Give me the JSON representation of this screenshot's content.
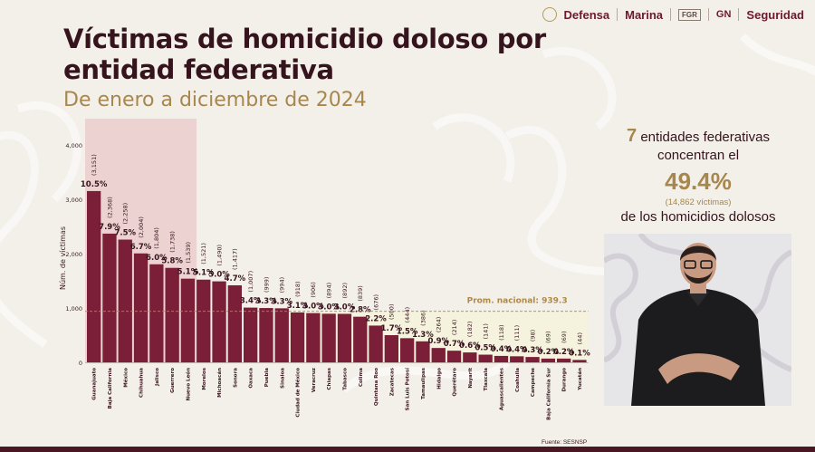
{
  "header": {
    "logos": [
      "Defensa",
      "Marina",
      "FGR",
      "GN",
      "Seguridad"
    ]
  },
  "title": "Víctimas de homicidio doloso por entidad federativa",
  "subtitle": "De enero a diciembre de 2024",
  "source": "Fuente: SESNSP",
  "summary": {
    "count": "7",
    "line1": "entidades federativas",
    "line2": "concentran el",
    "percent": "49.4%",
    "victims": "(14,862 víctimas)",
    "line4": "de los homicidios dolosos"
  },
  "colors": {
    "bar": "#7a1f37",
    "highlight": "#e9c8c8",
    "average_line": "#b08a45",
    "average_box": "#f4f2dc",
    "gold": "#a7874d"
  },
  "chart_data": {
    "type": "bar",
    "ylabel": "Núm. de víctimas",
    "ylim": [
      0,
      4000
    ],
    "yticks": [
      "0",
      "1,000",
      "2,000",
      "3,000",
      "4,000"
    ],
    "categories": [
      "Guanajuato",
      "Baja California",
      "México",
      "Chihuahua",
      "Jalisco",
      "Guerrero",
      "Nuevo León",
      "Morelos",
      "Michoacán",
      "Sonora",
      "Oaxaca",
      "Puebla",
      "Sinaloa",
      "Ciudad de México",
      "Veracruz",
      "Chiapas",
      "Tabasco",
      "Colima",
      "Quintana Roo",
      "Zacatecas",
      "San Luis Potosí",
      "Tamaulipas",
      "Hidalgo",
      "Querétaro",
      "Nayarit",
      "Tlaxcala",
      "Aguascalientes",
      "Coahuila",
      "Campeche",
      "Baja California Sur",
      "Durango",
      "Yucatán"
    ],
    "values": [
      3151,
      2368,
      2258,
      2004,
      1804,
      1738,
      1539,
      1521,
      1490,
      1417,
      1007,
      999,
      994,
      918,
      906,
      894,
      892,
      839,
      676,
      500,
      444,
      386,
      264,
      214,
      182,
      141,
      118,
      111,
      98,
      69,
      69,
      44
    ],
    "value_labels": [
      "(3,151)",
      "(2,368)",
      "(2,258)",
      "(2,004)",
      "(1,804)",
      "(1,738)",
      "(1,539)",
      "(1,521)",
      "(1,490)",
      "(1,417)",
      "(1,007)",
      "(999)",
      "(994)",
      "(918)",
      "(906)",
      "(894)",
      "(892)",
      "(839)",
      "(676)",
      "(500)",
      "(444)",
      "(386)",
      "(264)",
      "(214)",
      "(182)",
      "(141)",
      "(118)",
      "(111)",
      "(98)",
      "(69)",
      "(69)",
      "(44)"
    ],
    "percent_labels": [
      "10.5%",
      "7.9%",
      "7.5%",
      "6.7%",
      "6.0%",
      "5.8%",
      "5.1%",
      "5.1%",
      "5.0%",
      "4.7%",
      "3.4%",
      "3.3%",
      "3.3%",
      "3.1%",
      "3.0%",
      "3.0%",
      "3.0%",
      "2.8%",
      "2.2%",
      "1.7%",
      "1.5%",
      "1.3%",
      "0.9%",
      "0.7%",
      "0.6%",
      "0.5%",
      "0.4%",
      "0.4%",
      "0.3%",
      "0.2%",
      "0.2%",
      "0.1%"
    ],
    "highlighted_count": 7,
    "average": {
      "label": "Prom. nacional: 939.3",
      "value": 939.3
    },
    "grid": false
  }
}
